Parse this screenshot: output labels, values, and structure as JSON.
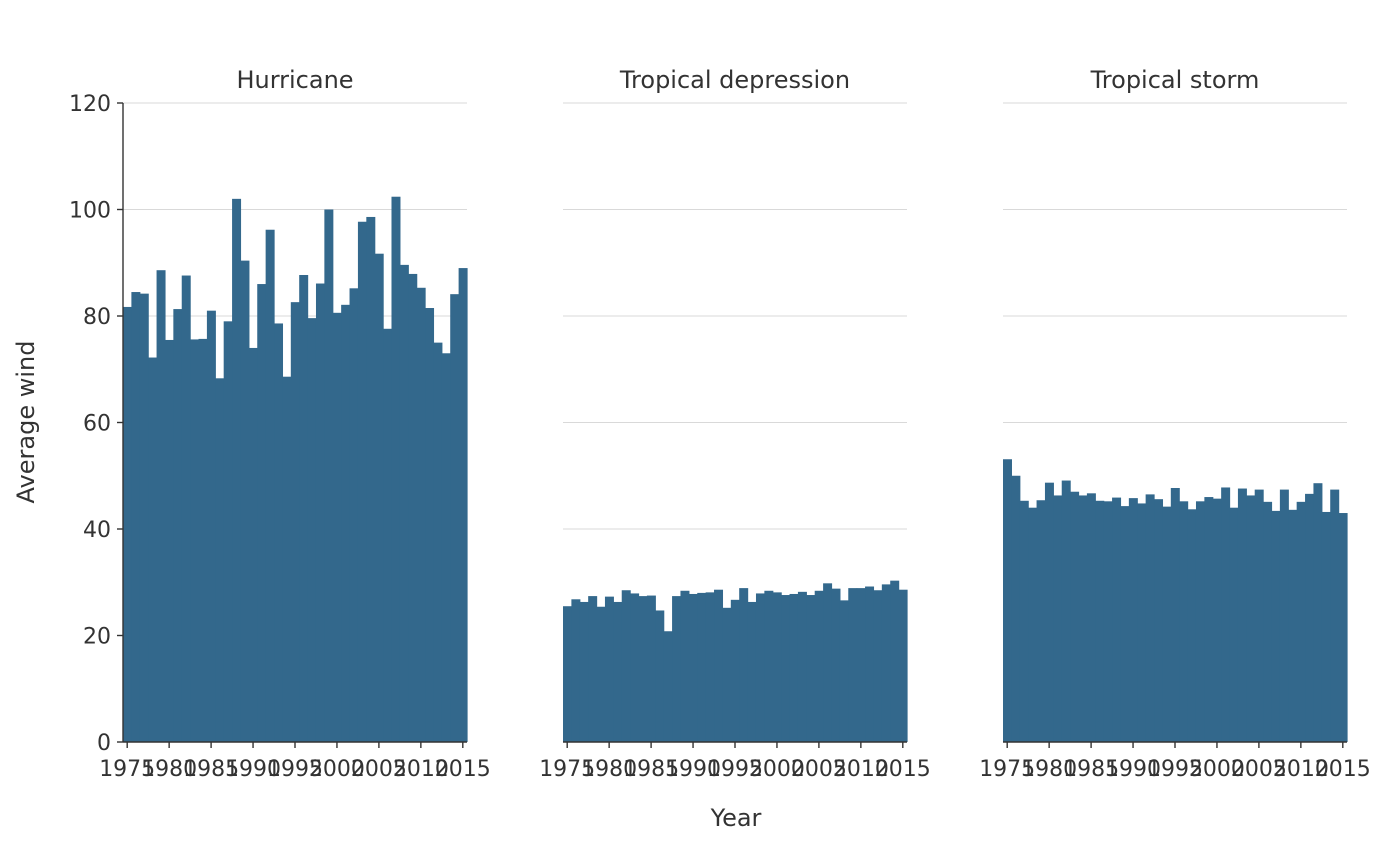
{
  "chart_data": {
    "type": "bar",
    "xlabel": "Year",
    "ylabel": "Average wind",
    "ylim": [
      0,
      120
    ],
    "yticks": [
      0,
      20,
      40,
      60,
      80,
      100,
      120
    ],
    "xticks": [
      1975,
      1980,
      1985,
      1990,
      1995,
      2000,
      2005,
      2010,
      2015
    ],
    "x": [
      1975,
      1976,
      1977,
      1978,
      1979,
      1980,
      1981,
      1982,
      1983,
      1984,
      1985,
      1986,
      1987,
      1988,
      1989,
      1990,
      1991,
      1992,
      1993,
      1994,
      1995,
      1996,
      1997,
      1998,
      1999,
      2000,
      2001,
      2002,
      2003,
      2004,
      2005,
      2006,
      2007,
      2008,
      2009,
      2010,
      2011,
      2012,
      2013,
      2014,
      2015
    ],
    "bar_color": "#33688c",
    "grid": true,
    "facets": [
      {
        "title": "Hurricane",
        "values": [
          81.7,
          84.5,
          84.2,
          72.2,
          88.6,
          75.5,
          81.3,
          87.6,
          75.6,
          75.7,
          81.0,
          68.3,
          79.0,
          102.0,
          90.4,
          74.0,
          86.0,
          96.2,
          78.6,
          68.6,
          82.6,
          87.7,
          79.6,
          86.1,
          100.0,
          80.6,
          82.1,
          85.2,
          97.7,
          98.6,
          91.7,
          77.6,
          102.4,
          89.6,
          87.9,
          85.3,
          81.5,
          75.0,
          73.0,
          84.1,
          89.0
        ]
      },
      {
        "title": "Tropical depression",
        "values": [
          25.5,
          26.8,
          26.3,
          27.4,
          25.4,
          27.3,
          26.3,
          28.5,
          27.9,
          27.4,
          27.5,
          24.7,
          20.8,
          27.4,
          28.4,
          27.8,
          28.0,
          28.1,
          28.6,
          25.2,
          26.7,
          28.9,
          26.3,
          27.9,
          28.4,
          28.1,
          27.6,
          27.8,
          28.2,
          27.6,
          28.4,
          29.8,
          28.8,
          26.6,
          28.9,
          28.9,
          29.2,
          28.5,
          29.6,
          30.3,
          28.6
        ]
      },
      {
        "title": "Tropical storm",
        "values": [
          53.1,
          50.0,
          45.3,
          44.0,
          45.4,
          48.7,
          46.3,
          49.1,
          47.0,
          46.3,
          46.7,
          45.3,
          45.2,
          45.9,
          44.3,
          45.8,
          44.8,
          46.5,
          45.6,
          44.2,
          47.7,
          45.2,
          43.7,
          45.2,
          46.0,
          45.7,
          47.8,
          44.0,
          47.6,
          46.3,
          47.4,
          45.1,
          43.4,
          47.4,
          43.6,
          45.1,
          46.6,
          48.6,
          43.2,
          47.4,
          43.0
        ]
      }
    ]
  }
}
